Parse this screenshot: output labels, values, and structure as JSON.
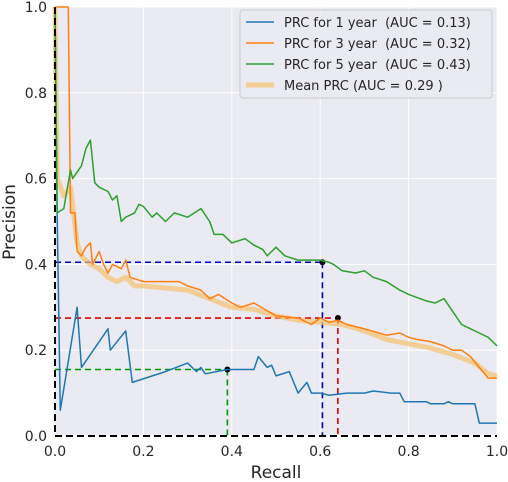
{
  "chart_data": {
    "type": "line",
    "title": "",
    "xlabel": "Recall",
    "ylabel": "Precision",
    "xlim": [
      0.0,
      1.0
    ],
    "ylim": [
      0.0,
      1.0
    ],
    "x_ticks": [
      "0.0",
      "0.2",
      "0.4",
      "0.6",
      "0.8",
      "1.0"
    ],
    "y_ticks": [
      "0.0",
      "0.2",
      "0.4",
      "0.6",
      "0.8",
      "1.0"
    ],
    "grid": true,
    "background": "#eaeaf2",
    "legend_position": "top-right",
    "series": [
      {
        "name": "PRC for 1 year  (AUC = 0.13)",
        "color": "#1f77b4",
        "points": [
          [
            0.0,
            1.0
          ],
          [
            0.005,
            0.51
          ],
          [
            0.012,
            0.06
          ],
          [
            0.05,
            0.3
          ],
          [
            0.06,
            0.16
          ],
          [
            0.12,
            0.25
          ],
          [
            0.125,
            0.2
          ],
          [
            0.16,
            0.245
          ],
          [
            0.175,
            0.125
          ],
          [
            0.25,
            0.15
          ],
          [
            0.3,
            0.17
          ],
          [
            0.32,
            0.15
          ],
          [
            0.33,
            0.16
          ],
          [
            0.34,
            0.145
          ],
          [
            0.39,
            0.155
          ],
          [
            0.45,
            0.155
          ],
          [
            0.46,
            0.185
          ],
          [
            0.48,
            0.16
          ],
          [
            0.49,
            0.165
          ],
          [
            0.5,
            0.14
          ],
          [
            0.53,
            0.15
          ],
          [
            0.55,
            0.1
          ],
          [
            0.57,
            0.125
          ],
          [
            0.58,
            0.1
          ],
          [
            0.6,
            0.1
          ],
          [
            0.62,
            0.095
          ],
          [
            0.66,
            0.1
          ],
          [
            0.7,
            0.1
          ],
          [
            0.72,
            0.105
          ],
          [
            0.76,
            0.1
          ],
          [
            0.78,
            0.1
          ],
          [
            0.79,
            0.08
          ],
          [
            0.84,
            0.08
          ],
          [
            0.85,
            0.075
          ],
          [
            0.88,
            0.075
          ],
          [
            0.89,
            0.08
          ],
          [
            0.9,
            0.075
          ],
          [
            0.95,
            0.075
          ],
          [
            0.96,
            0.03
          ],
          [
            1.0,
            0.03
          ]
        ]
      },
      {
        "name": "PRC for 3 year  (AUC = 0.32)",
        "color": "#ff7f0e",
        "points": [
          [
            0.0,
            1.0
          ],
          [
            0.005,
            1.0
          ],
          [
            0.03,
            1.0
          ],
          [
            0.035,
            0.52
          ],
          [
            0.045,
            0.52
          ],
          [
            0.05,
            0.43
          ],
          [
            0.06,
            0.42
          ],
          [
            0.07,
            0.44
          ],
          [
            0.08,
            0.45
          ],
          [
            0.085,
            0.4
          ],
          [
            0.1,
            0.43
          ],
          [
            0.11,
            0.4
          ],
          [
            0.12,
            0.38
          ],
          [
            0.13,
            0.4
          ],
          [
            0.15,
            0.39
          ],
          [
            0.16,
            0.41
          ],
          [
            0.17,
            0.37
          ],
          [
            0.2,
            0.36
          ],
          [
            0.25,
            0.36
          ],
          [
            0.28,
            0.36
          ],
          [
            0.3,
            0.35
          ],
          [
            0.33,
            0.34
          ],
          [
            0.35,
            0.32
          ],
          [
            0.37,
            0.33
          ],
          [
            0.4,
            0.31
          ],
          [
            0.42,
            0.3
          ],
          [
            0.45,
            0.31
          ],
          [
            0.5,
            0.28
          ],
          [
            0.55,
            0.275
          ],
          [
            0.58,
            0.26
          ],
          [
            0.6,
            0.275
          ],
          [
            0.62,
            0.265
          ],
          [
            0.64,
            0.27
          ],
          [
            0.66,
            0.26
          ],
          [
            0.7,
            0.25
          ],
          [
            0.75,
            0.235
          ],
          [
            0.78,
            0.24
          ],
          [
            0.8,
            0.23
          ],
          [
            0.82,
            0.225
          ],
          [
            0.85,
            0.22
          ],
          [
            0.88,
            0.21
          ],
          [
            0.9,
            0.2
          ],
          [
            0.92,
            0.2
          ],
          [
            0.94,
            0.185
          ],
          [
            0.96,
            0.16
          ],
          [
            0.98,
            0.135
          ],
          [
            1.0,
            0.135
          ]
        ]
      },
      {
        "name": "PRC for 5 year  (AUC = 0.43)",
        "color": "#2ca02c",
        "points": [
          [
            0.0,
            1.0
          ],
          [
            0.005,
            0.52
          ],
          [
            0.02,
            0.53
          ],
          [
            0.035,
            0.62
          ],
          [
            0.04,
            0.6
          ],
          [
            0.06,
            0.63
          ],
          [
            0.07,
            0.67
          ],
          [
            0.08,
            0.69
          ],
          [
            0.09,
            0.59
          ],
          [
            0.1,
            0.58
          ],
          [
            0.12,
            0.57
          ],
          [
            0.13,
            0.55
          ],
          [
            0.14,
            0.56
          ],
          [
            0.15,
            0.5
          ],
          [
            0.16,
            0.51
          ],
          [
            0.18,
            0.52
          ],
          [
            0.19,
            0.54
          ],
          [
            0.2,
            0.535
          ],
          [
            0.22,
            0.51
          ],
          [
            0.23,
            0.52
          ],
          [
            0.24,
            0.51
          ],
          [
            0.25,
            0.5
          ],
          [
            0.27,
            0.52
          ],
          [
            0.3,
            0.51
          ],
          [
            0.33,
            0.53
          ],
          [
            0.35,
            0.5
          ],
          [
            0.36,
            0.47
          ],
          [
            0.38,
            0.47
          ],
          [
            0.4,
            0.45
          ],
          [
            0.43,
            0.46
          ],
          [
            0.45,
            0.445
          ],
          [
            0.47,
            0.435
          ],
          [
            0.48,
            0.42
          ],
          [
            0.5,
            0.44
          ],
          [
            0.52,
            0.42
          ],
          [
            0.55,
            0.41
          ],
          [
            0.6,
            0.41
          ],
          [
            0.62,
            0.405
          ],
          [
            0.63,
            0.4
          ],
          [
            0.65,
            0.385
          ],
          [
            0.68,
            0.38
          ],
          [
            0.7,
            0.385
          ],
          [
            0.72,
            0.37
          ],
          [
            0.75,
            0.36
          ],
          [
            0.78,
            0.34
          ],
          [
            0.8,
            0.33
          ],
          [
            0.84,
            0.315
          ],
          [
            0.86,
            0.31
          ],
          [
            0.88,
            0.32
          ],
          [
            0.9,
            0.29
          ],
          [
            0.92,
            0.26
          ],
          [
            0.94,
            0.25
          ],
          [
            0.96,
            0.24
          ],
          [
            0.98,
            0.23
          ],
          [
            1.0,
            0.21
          ]
        ]
      },
      {
        "name": "Mean PRC (AUC = 0.29 )",
        "color": "#f5c16c",
        "points": [
          [
            0.0,
            1.0
          ],
          [
            0.005,
            0.6
          ],
          [
            0.02,
            0.56
          ],
          [
            0.035,
            0.58
          ],
          [
            0.05,
            0.45
          ],
          [
            0.06,
            0.42
          ],
          [
            0.08,
            0.4
          ],
          [
            0.1,
            0.39
          ],
          [
            0.12,
            0.37
          ],
          [
            0.14,
            0.36
          ],
          [
            0.16,
            0.37
          ],
          [
            0.18,
            0.35
          ],
          [
            0.2,
            0.35
          ],
          [
            0.25,
            0.345
          ],
          [
            0.3,
            0.34
          ],
          [
            0.35,
            0.32
          ],
          [
            0.4,
            0.3
          ],
          [
            0.45,
            0.295
          ],
          [
            0.5,
            0.28
          ],
          [
            0.55,
            0.27
          ],
          [
            0.6,
            0.265
          ],
          [
            0.65,
            0.26
          ],
          [
            0.7,
            0.245
          ],
          [
            0.75,
            0.225
          ],
          [
            0.8,
            0.215
          ],
          [
            0.85,
            0.205
          ],
          [
            0.9,
            0.19
          ],
          [
            0.95,
            0.17
          ],
          [
            0.98,
            0.145
          ],
          [
            1.0,
            0.14
          ]
        ]
      }
    ],
    "reference_lines": [
      {
        "color": "#0000cc",
        "x": 0.605,
        "y": 0.405
      },
      {
        "color": "#dd0000",
        "x": 0.64,
        "y": 0.275
      },
      {
        "color": "#009900",
        "x": 0.39,
        "y": 0.155
      }
    ],
    "axis_frame_color": "#000000"
  }
}
